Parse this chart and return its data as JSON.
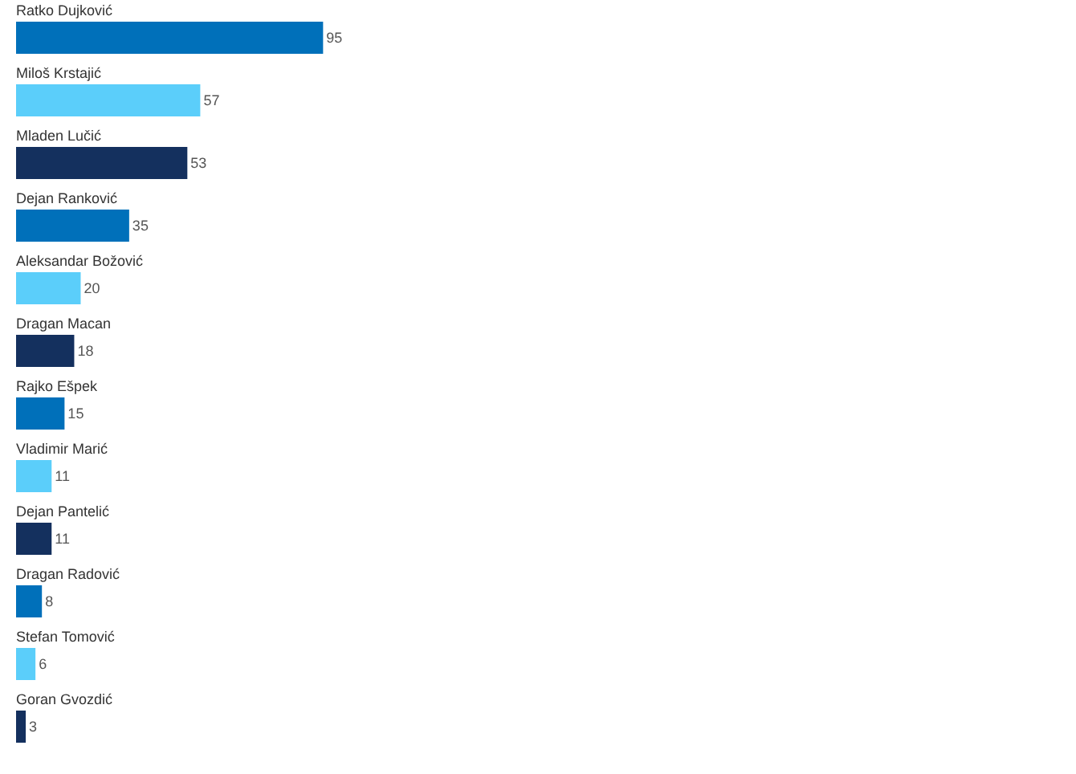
{
  "chart_data": {
    "type": "bar",
    "orientation": "horizontal",
    "data_labels": true,
    "categories": [
      "Ratko Dujković",
      "Miloš Krstajić",
      "Mladen Lučić",
      "Dejan Ranković",
      "Aleksandar Božović",
      "Dragan Macan",
      "Rajko Ešpek",
      "Vladimir Marić",
      "Dejan Pantelić",
      "Dragan Radović",
      "Stefan Tomović",
      "Goran Gvozdić"
    ],
    "values": [
      95,
      57,
      53,
      35,
      20,
      18,
      15,
      11,
      11,
      8,
      6,
      3
    ],
    "colors": [
      "#0070ba",
      "#5bcefa",
      "#14305e",
      "#0070ba",
      "#5bcefa",
      "#14305e",
      "#0070ba",
      "#5bcefa",
      "#14305e",
      "#0070ba",
      "#5bcefa",
      "#14305e"
    ]
  }
}
